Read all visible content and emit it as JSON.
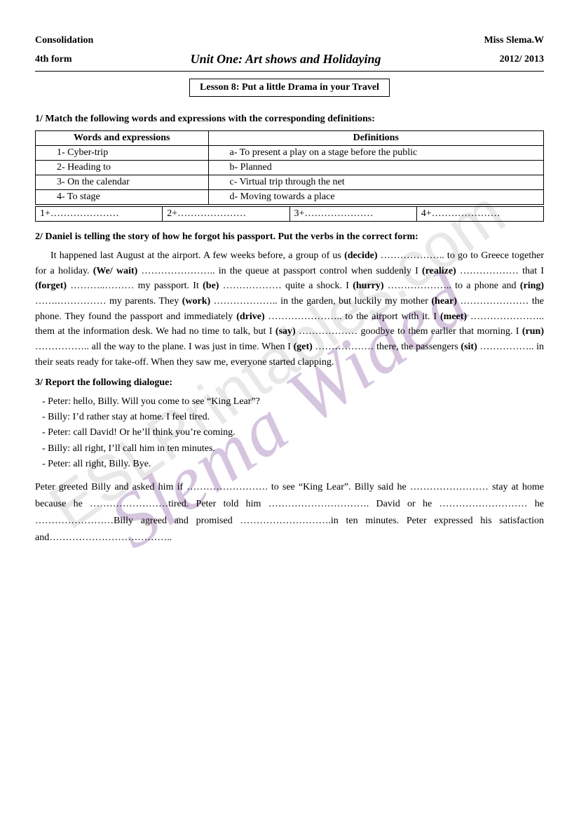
{
  "header": {
    "left_top": "Consolidation",
    "right_top": "Miss Slema.W",
    "left_mid": "4th form",
    "unit_title": "Unit One: Art shows and Holidaying",
    "right_mid": "2012/ 2013",
    "lesson_title": "Lesson 8: Put a little Drama in your Travel"
  },
  "watermark_front": "Slema Wided",
  "watermark_back": "ESLPrintables.com",
  "ex1": {
    "title": "1/ Match the following words and expressions with the corresponding definitions:",
    "col1_header": "Words and expressions",
    "col2_header": "Definitions",
    "rows": [
      {
        "w": "1-  Cyber-trip",
        "d": "a-   To present a play on a stage before the public"
      },
      {
        "w": "2-  Heading to",
        "d": "b-   Planned"
      },
      {
        "w": "3-  On the calendar",
        "d": "c-   Virtual trip through the net"
      },
      {
        "w": "4-  To stage",
        "d": "d-   Moving towards a place"
      }
    ],
    "answers": [
      "1+…………………",
      "2+…………………",
      "3+…………………",
      "4+…………………"
    ]
  },
  "ex2": {
    "title": "2/ Daniel is telling the story of how he forgot his passport. Put the verbs in the correct form:",
    "text_html": "It happened last August at the airport. A few weeks before, a group of us <b>(decide)</b> ……………….. to go to Greece together for a holiday. <b>(We/ wait)</b> ………………….. in the queue at passport control when suddenly I <b>(realize)</b> ……………… that I <b>(forget)</b> ………..……… my passport. It <b>(be)</b> ……………… quite a shock. I <b>(hurry)</b> ……………….. to a phone and <b>(ring)</b> …….…………… my parents. They <b>(work)</b> ……………….. in the garden, but luckily my mother <b>(hear)</b> ………………… the phone. They found the passport and immediately <b>(drive)</b> ………………….. to the airport with it. I <b>(meet)</b> ………………….. them at the information desk. We had no time to talk, but I <b>(say)</b> ……………… goodbye to them earlier that morning. I <b>(run)</b> …………….. all the way to the plane. I was just in time. When I <b>(get)</b> ……………… there, the passengers <b>(sit)</b> …………….. in their seats ready for take-off. When they saw me, everyone started clapping."
  },
  "ex3": {
    "title": "3/ Report the following dialogue:",
    "lines": [
      "Peter: hello, Billy. Will you come to see “King Lear”?",
      "Billy: I’d rather stay at home. I feel tired.",
      "Peter: call David! Or he’ll think you’re coming.",
      "Billy: all right, I’ll call him in ten minutes.",
      "Peter: all right, Billy. Bye."
    ],
    "fill_html": "Peter greeted Billy and asked him if ……………………. to see “King Lear”. Billy said he …………………… stay at home because he ……………………tired.  Peter told him …………………………. David or he ……………………… he ……………………Billy agreed and promised ……………………….in ten minutes. Peter expressed his satisfaction and……………………………….."
  },
  "colors": {
    "text": "#000000",
    "background": "#ffffff",
    "watermark_front": "rgba(138,90,160,0.35)",
    "watermark_back": "rgba(180,180,180,0.3)"
  }
}
